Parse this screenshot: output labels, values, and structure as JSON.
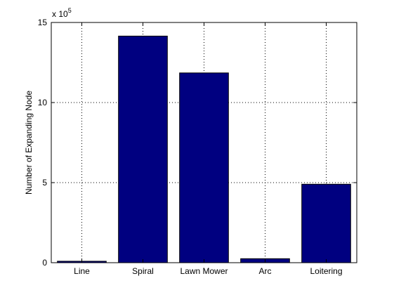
{
  "chart_data": {
    "type": "bar",
    "categories": [
      "Line",
      "Spiral",
      "Lawn Mower",
      "Arc",
      "Loitering"
    ],
    "values": [
      9000,
      1415000,
      1185000,
      25000,
      490000
    ],
    "title": "",
    "xlabel": "",
    "ylabel": "Number of Expanding Node",
    "ylim": [
      0,
      1500000
    ],
    "yticks": [
      0,
      500000,
      1000000,
      1500000
    ],
    "ytick_labels": [
      "0",
      "5",
      "10",
      "15"
    ],
    "y_exponent_prefix": "x 10",
    "y_exponent_power": "5",
    "grid": true,
    "bar_color": "#000080",
    "bar_edge_color": "#000000"
  }
}
